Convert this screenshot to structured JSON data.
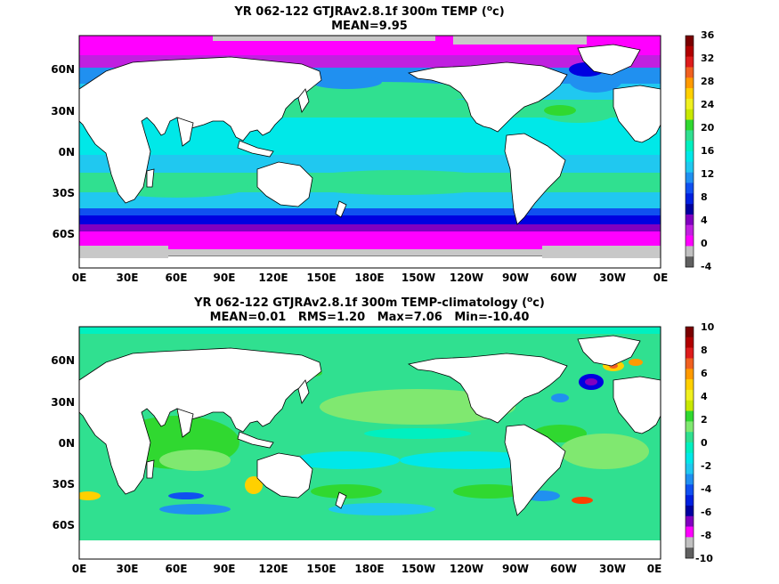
{
  "top_panel": {
    "title": "YR 062-122 GTJRAv2.8.1f 300m TEMP (",
    "title_sup": "o",
    "title_end": "c)",
    "subtitle": "MEAN=9.95",
    "lat_labels": [
      "60N",
      "30N",
      "0N",
      "30S",
      "60S"
    ],
    "lon_labels": [
      "0E",
      "30E",
      "60E",
      "90E",
      "120E",
      "150E",
      "180E",
      "150W",
      "120W",
      "90W",
      "60W",
      "30W",
      "0E"
    ],
    "colorbar": {
      "labels": [
        "36",
        "32",
        "28",
        "24",
        "20",
        "16",
        "12",
        "8",
        "4",
        "0",
        "-4"
      ],
      "colors": [
        "#7a0000",
        "#b00000",
        "#dd1c1c",
        "#f06020",
        "#ff9a00",
        "#ffd000",
        "#f0f020",
        "#c8e800",
        "#30d830",
        "#30e090",
        "#00f0c0",
        "#00e8e8",
        "#20c8f0",
        "#2090f0",
        "#1050f0",
        "#0020e0",
        "#0000a0",
        "#8000c0",
        "#c020e0",
        "#ff00ff",
        "#c0c0c0",
        "#606060"
      ]
    },
    "colors": {
      "land": "#ffffff",
      "ice": "#c8c8c8",
      "polar": "#ff00ff",
      "south_band": "#0000e0",
      "south_band2": "#3050ff",
      "subpolar": "#20c8f0",
      "mid": "#00e8e8",
      "subtrop": "#30e090",
      "kuroshio": "#30e090",
      "tropic": "#00e0e0"
    }
  },
  "bottom_panel": {
    "title": "YR 062-122 GTJRAv2.8.1f 300m TEMP-climatology (",
    "title_sup": "o",
    "title_end": "c)",
    "subtitle": "MEAN=0.01   RMS=1.20   Max=7.06   Min=-10.40",
    "lat_labels": [
      "60N",
      "30N",
      "0N",
      "30S",
      "60S"
    ],
    "lon_labels": [
      "0E",
      "30E",
      "60E",
      "90E",
      "120E",
      "150E",
      "180E",
      "150W",
      "120W",
      "90W",
      "60W",
      "30W",
      "0E"
    ],
    "colorbar": {
      "labels": [
        "10",
        "8",
        "6",
        "4",
        "2",
        "0",
        "-2",
        "-4",
        "-6",
        "-8",
        "-10"
      ],
      "colors": [
        "#7a0000",
        "#b00000",
        "#dd1c1c",
        "#f06020",
        "#ff9a00",
        "#ffd000",
        "#f0f020",
        "#c8e800",
        "#30d830",
        "#80e870",
        "#30e090",
        "#00f0c0",
        "#00e8e8",
        "#20c8f0",
        "#2090f0",
        "#1050f0",
        "#0020e0",
        "#0000a0",
        "#8000c0",
        "#ff00ff",
        "#c0c0c0",
        "#606060"
      ]
    },
    "colors": {
      "base": "#30e090",
      "green": "#30d830",
      "bright": "#60f040",
      "cyan": "#00e8e8",
      "blue": "#2090f0",
      "dark": "#0000e0",
      "orange": "#ffd000",
      "red": "#ff4000",
      "land": "#ffffff"
    }
  }
}
